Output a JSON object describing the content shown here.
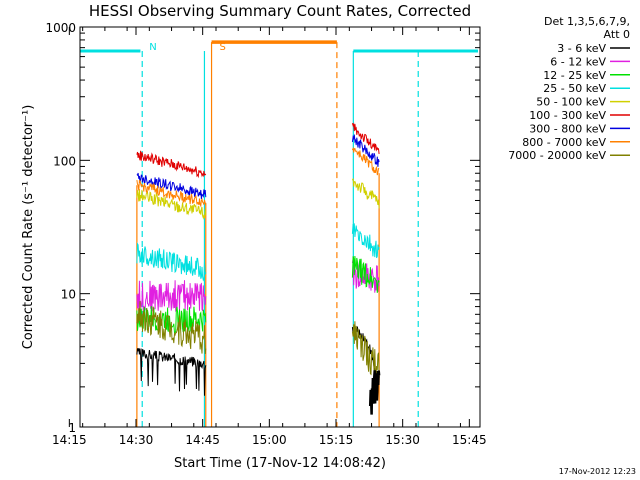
{
  "chart_data": {
    "type": "line",
    "title": "HESSI Observing Summary Count Rates, Corrected",
    "xlabel": "Start Time (17-Nov-12 14:08:42)",
    "ylabel": "Corrected Count Rate (s⁻¹ detector⁻¹)",
    "x_ticks": [
      "14:15",
      "14:30",
      "14:45",
      "15:00",
      "15:15",
      "15:30",
      "15:45"
    ],
    "x_range_min": [
      8.7,
      98.7
    ],
    "y_scale": "log",
    "y_range": [
      1,
      1000
    ],
    "y_ticks": [
      "1",
      "10",
      "100",
      "1000"
    ],
    "legend": {
      "position": "right",
      "header": [
        "Det 1,3,5,6,7,9,",
        "Att 0"
      ],
      "entries": [
        "3 - 6 keV",
        "6 - 12 keV",
        "12 - 25 keV",
        "25 - 50 keV",
        "50 - 100 keV",
        "100 - 300 keV",
        "300 - 800 keV",
        "800 - 7000 keV",
        "7000 - 20000 keV"
      ]
    },
    "series": [
      {
        "name": "3 - 6 keV",
        "color": "#000000",
        "seg1": [
          [
            21.5,
            3.6
          ],
          [
            37,
            3
          ]
        ],
        "seg2": [
          [
            70,
            5.5
          ],
          [
            72.5,
            4.8
          ],
          [
            74,
            3.8
          ],
          [
            76,
            2
          ]
        ]
      },
      {
        "name": "6 - 12 keV",
        "color": "#e020e0",
        "seg1": [
          [
            21.5,
            9.5
          ],
          [
            37,
            9.8
          ]
        ],
        "seg2": [
          [
            70,
            14
          ],
          [
            76,
            13
          ]
        ]
      },
      {
        "name": "12 - 25 keV",
        "color": "#00e000",
        "seg1": [
          [
            21.5,
            6.5
          ],
          [
            37,
            6.3
          ]
        ],
        "seg2": [
          [
            70,
            16
          ],
          [
            76,
            12
          ]
        ]
      },
      {
        "name": "25 - 50 keV",
        "color": "#00e0e0",
        "seg1": [
          [
            21.5,
            20
          ],
          [
            37,
            15
          ]
        ],
        "seg2": [
          [
            70,
            30
          ],
          [
            76,
            20
          ]
        ]
      },
      {
        "name": "50 - 100 keV",
        "color": "#d0d000",
        "seg1": [
          [
            21.5,
            55
          ],
          [
            37,
            40
          ]
        ],
        "seg2": [
          [
            70,
            70
          ],
          [
            76,
            48
          ]
        ]
      },
      {
        "name": "100 - 300 keV",
        "color": "#e00000",
        "seg1": [
          [
            21.5,
            110
          ],
          [
            37,
            80
          ]
        ],
        "seg2": [
          [
            70,
            180
          ],
          [
            76,
            115
          ]
        ]
      },
      {
        "name": "300 - 800 keV",
        "color": "#0000e0",
        "seg1": [
          [
            21.5,
            75
          ],
          [
            37,
            55
          ]
        ],
        "seg2": [
          [
            70,
            150
          ],
          [
            76,
            95
          ]
        ]
      },
      {
        "name": "800 - 7000 keV",
        "color": "#ff8000",
        "seg1": [
          [
            21.5,
            65
          ],
          [
            37,
            48
          ]
        ],
        "seg2": [
          [
            70,
            125
          ],
          [
            76,
            80
          ]
        ]
      },
      {
        "name": "7000 - 20000 keV",
        "color": "#808000",
        "seg1": [
          [
            21.5,
            7
          ],
          [
            37,
            4.5
          ]
        ],
        "seg2": [
          [
            70,
            5.2
          ],
          [
            72,
            4
          ],
          [
            74,
            3.2
          ],
          [
            76,
            2.8
          ]
        ]
      }
    ],
    "annotations": [
      {
        "label": "N",
        "color": "#00e0e0",
        "x_min": 22.7
      },
      {
        "label": "S",
        "color": "#ff8000",
        "x_min": 38.5
      }
    ],
    "timestamp": "17-Nov-2012 12:23"
  }
}
